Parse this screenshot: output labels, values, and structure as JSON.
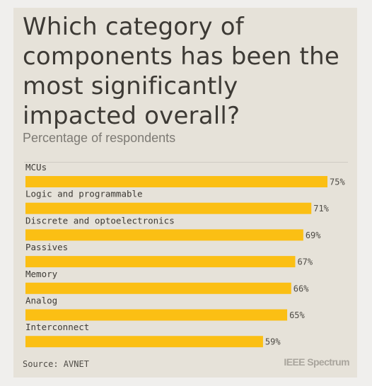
{
  "chart_data": {
    "type": "bar",
    "orientation": "horizontal",
    "title": "Which category of components has been the most significantly impacted overall?",
    "subtitle": "Percentage of respondents",
    "categories": [
      "MCUs",
      "Logic and programmable",
      "Discrete and optoelectronics",
      "Passives",
      "Memory",
      "Analog",
      "Interconnect"
    ],
    "values": [
      75,
      71,
      69,
      67,
      66,
      65,
      59
    ],
    "value_labels": [
      "75%",
      "71%",
      "69%",
      "67%",
      "66%",
      "65%",
      "59%"
    ],
    "unit": "%",
    "xlim": [
      0,
      75
    ],
    "grid": false,
    "bar_color": "#fbbf14"
  },
  "source": "Source: AVNET",
  "logo_text": "IEEE Spectrum",
  "colors": {
    "background": "#e6e2d9",
    "title": "#3d3a35",
    "bar": "#fbbf14"
  }
}
